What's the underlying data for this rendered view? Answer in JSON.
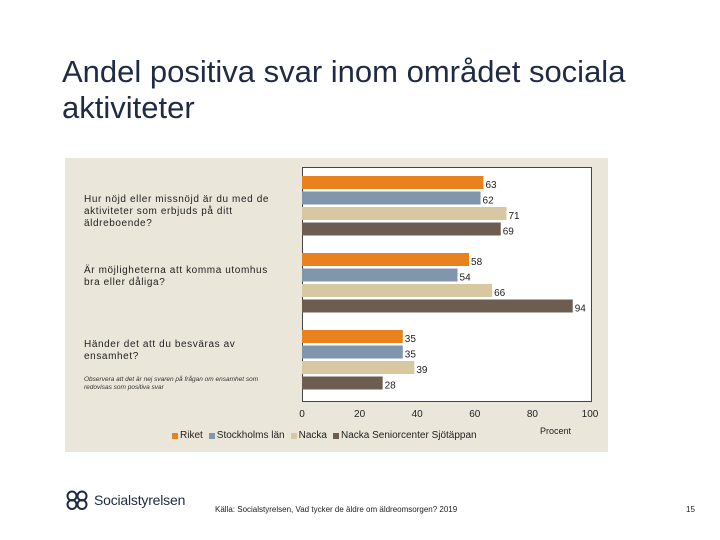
{
  "slide": {
    "title": "Andel positiva svar inom området sociala aktiviteter",
    "logo_text": "Socialstyrelsen",
    "source": "Källa: Socialstyrelsen, Vad tycker de äldre om äldreomsorgen? 2019",
    "page_number": "15"
  },
  "chart_data": {
    "type": "bar",
    "orientation": "horizontal",
    "categories": [
      "Hur nöjd eller missnöjd är du med de aktiviteter som erbjuds på ditt äldreboende?",
      "Är möjligheterna att komma utomhus bra eller dåliga?",
      "Händer det att du besväras av ensamhet?"
    ],
    "category_note": "Observera att det är nej svaren på frågan om ensamhet som redovisas som positiva svar",
    "series": [
      {
        "name": "Riket",
        "color": "#e8821e",
        "values": [
          63,
          58,
          35
        ]
      },
      {
        "name": "Stockholms län",
        "color": "#7f96ad",
        "values": [
          62,
          54,
          35
        ]
      },
      {
        "name": "Nacka",
        "color": "#d7c8a2",
        "values": [
          71,
          66,
          39
        ]
      },
      {
        "name": "Nacka Seniorcenter Sjötäppan",
        "color": "#6d5c50",
        "values": [
          69,
          94,
          28
        ]
      }
    ],
    "xlim": [
      0,
      100
    ],
    "xticks": [
      "0",
      "20",
      "40",
      "60",
      "80",
      "100"
    ],
    "xlabel": "Procent",
    "legend_position": "bottom"
  }
}
